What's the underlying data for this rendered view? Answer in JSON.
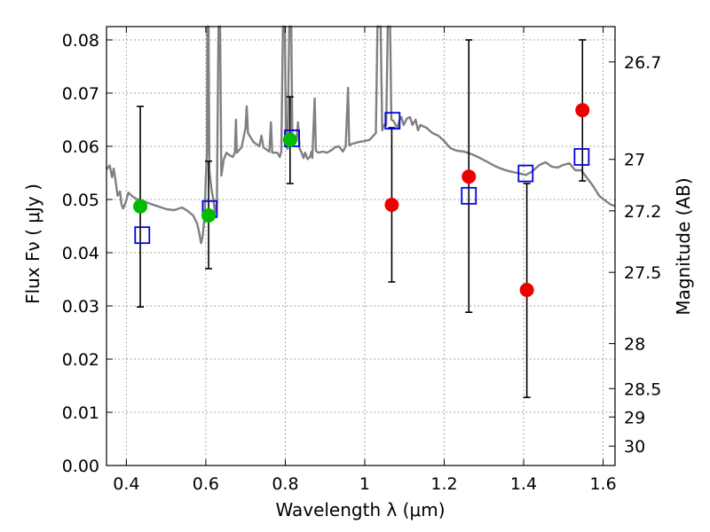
{
  "chart_data": {
    "type": "scatter",
    "xlabel": "Wavelength  λ (μm)",
    "ylabel": "Flux  Fν  ( μJy )",
    "ylabel_right": "Magnitude (AB)",
    "xlim": [
      0.35,
      1.63
    ],
    "ylim": [
      0.0,
      0.0825
    ],
    "grid": true,
    "x_ticks": [
      0.4,
      0.6,
      0.8,
      1.0,
      1.2,
      1.4,
      1.6
    ],
    "x_tick_labels": [
      "0.4",
      "0.6",
      "0.8",
      "1",
      "1.2",
      "1.4",
      "1.6"
    ],
    "y_ticks": [
      0.0,
      0.01,
      0.02,
      0.03,
      0.04,
      0.05,
      0.06,
      0.07,
      0.08
    ],
    "y_tick_labels": [
      "0.00",
      "0.01",
      "0.02",
      "0.03",
      "0.04",
      "0.05",
      "0.06",
      "0.07",
      "0.08"
    ],
    "mag_ticks": [
      26.7,
      27,
      27.2,
      27.5,
      28,
      28.5,
      29,
      30
    ],
    "mag_tick_labels": [
      "26.7",
      "27",
      "27.2",
      "27.5",
      "28",
      "28.5",
      "29",
      "30"
    ],
    "colors": {
      "sed": "#808080",
      "green_points": "#00bb00",
      "red_points": "#ee0000",
      "model_squares": "#0000dd",
      "error_bars": "#000000",
      "grid": "#888888"
    },
    "error_bars": [
      {
        "x": 0.435,
        "y_low": 0.0298,
        "y_high": 0.0675
      },
      {
        "x": 0.607,
        "y_low": 0.037,
        "y_high": 0.0572
      },
      {
        "x": 0.812,
        "y_low": 0.053,
        "y_high": 0.0693
      },
      {
        "x": 1.068,
        "y_low": 0.0345,
        "y_high": 0.0635
      },
      {
        "x": 1.262,
        "y_low": 0.0288,
        "y_high": 0.08
      },
      {
        "x": 1.408,
        "y_low": 0.0128,
        "y_high": 0.053
      },
      {
        "x": 1.548,
        "y_low": 0.0535,
        "y_high": 0.08
      }
    ],
    "green_points": [
      {
        "x": 0.435,
        "y": 0.0487
      },
      {
        "x": 0.607,
        "y": 0.047
      },
      {
        "x": 0.812,
        "y": 0.0612
      }
    ],
    "red_points": [
      {
        "x": 1.068,
        "y": 0.049
      },
      {
        "x": 1.262,
        "y": 0.0543
      },
      {
        "x": 1.408,
        "y": 0.033
      },
      {
        "x": 1.548,
        "y": 0.0668
      }
    ],
    "model_squares": [
      {
        "x": 0.44,
        "y": 0.0433
      },
      {
        "x": 0.61,
        "y": 0.0482
      },
      {
        "x": 0.817,
        "y": 0.0615
      },
      {
        "x": 1.07,
        "y": 0.0648
      },
      {
        "x": 1.262,
        "y": 0.0507
      },
      {
        "x": 1.405,
        "y": 0.0549
      },
      {
        "x": 1.546,
        "y": 0.058
      }
    ],
    "sed_curve": [
      [
        0.35,
        0.0557
      ],
      [
        0.358,
        0.0564
      ],
      [
        0.364,
        0.0542
      ],
      [
        0.368,
        0.0558
      ],
      [
        0.372,
        0.054
      ],
      [
        0.378,
        0.0507
      ],
      [
        0.384,
        0.0515
      ],
      [
        0.388,
        0.049
      ],
      [
        0.392,
        0.0483
      ],
      [
        0.398,
        0.0494
      ],
      [
        0.405,
        0.0513
      ],
      [
        0.415,
        0.0506
      ],
      [
        0.425,
        0.0501
      ],
      [
        0.44,
        0.0498
      ],
      [
        0.46,
        0.0492
      ],
      [
        0.48,
        0.0487
      ],
      [
        0.5,
        0.0482
      ],
      [
        0.52,
        0.048
      ],
      [
        0.54,
        0.0485
      ],
      [
        0.555,
        0.0478
      ],
      [
        0.568,
        0.047
      ],
      [
        0.578,
        0.0455
      ],
      [
        0.584,
        0.0435
      ],
      [
        0.588,
        0.0418
      ],
      [
        0.592,
        0.043
      ],
      [
        0.597,
        0.047
      ],
      [
        0.6,
        0.054
      ],
      [
        0.603,
        0.059
      ],
      [
        0.604,
        0.0825
      ],
      [
        0.607,
        0.0825
      ],
      [
        0.609,
        0.0555
      ],
      [
        0.614,
        0.052
      ],
      [
        0.619,
        0.05
      ],
      [
        0.623,
        0.0475
      ],
      [
        0.628,
        0.0495
      ],
      [
        0.632,
        0.0825
      ],
      [
        0.636,
        0.0825
      ],
      [
        0.639,
        0.0545
      ],
      [
        0.645,
        0.0575
      ],
      [
        0.652,
        0.0588
      ],
      [
        0.66,
        0.0583
      ],
      [
        0.668,
        0.058
      ],
      [
        0.673,
        0.0588
      ],
      [
        0.676,
        0.065
      ],
      [
        0.678,
        0.0588
      ],
      [
        0.69,
        0.0598
      ],
      [
        0.7,
        0.0635
      ],
      [
        0.703,
        0.0675
      ],
      [
        0.706,
        0.0625
      ],
      [
        0.72,
        0.0608
      ],
      [
        0.735,
        0.06
      ],
      [
        0.74,
        0.062
      ],
      [
        0.745,
        0.0598
      ],
      [
        0.76,
        0.059
      ],
      [
        0.764,
        0.0645
      ],
      [
        0.767,
        0.0588
      ],
      [
        0.78,
        0.0588
      ],
      [
        0.786,
        0.058
      ],
      [
        0.79,
        0.059
      ],
      [
        0.794,
        0.0825
      ],
      [
        0.799,
        0.0825
      ],
      [
        0.802,
        0.06
      ],
      [
        0.806,
        0.0595
      ],
      [
        0.81,
        0.0825
      ],
      [
        0.815,
        0.0825
      ],
      [
        0.818,
        0.0605
      ],
      [
        0.824,
        0.0618
      ],
      [
        0.828,
        0.061
      ],
      [
        0.832,
        0.0645
      ],
      [
        0.836,
        0.0595
      ],
      [
        0.84,
        0.059
      ],
      [
        0.846,
        0.0578
      ],
      [
        0.85,
        0.0588
      ],
      [
        0.856,
        0.0576
      ],
      [
        0.862,
        0.058
      ],
      [
        0.866,
        0.059
      ],
      [
        0.868,
        0.0578
      ],
      [
        0.874,
        0.069
      ],
      [
        0.877,
        0.0592
      ],
      [
        0.882,
        0.0588
      ],
      [
        0.895,
        0.059
      ],
      [
        0.905,
        0.0588
      ],
      [
        0.915,
        0.0592
      ],
      [
        0.925,
        0.0598
      ],
      [
        0.935,
        0.06
      ],
      [
        0.945,
        0.059
      ],
      [
        0.952,
        0.06
      ],
      [
        0.958,
        0.071
      ],
      [
        0.961,
        0.0602
      ],
      [
        0.97,
        0.0605
      ],
      [
        0.985,
        0.0608
      ],
      [
        1.0,
        0.061
      ],
      [
        1.012,
        0.0612
      ],
      [
        1.022,
        0.062
      ],
      [
        1.028,
        0.0625
      ],
      [
        1.032,
        0.0825
      ],
      [
        1.04,
        0.0825
      ],
      [
        1.044,
        0.063
      ],
      [
        1.048,
        0.064
      ],
      [
        1.054,
        0.064
      ],
      [
        1.058,
        0.0825
      ],
      [
        1.064,
        0.0825
      ],
      [
        1.067,
        0.065
      ],
      [
        1.072,
        0.0648
      ],
      [
        1.078,
        0.064
      ],
      [
        1.083,
        0.0635
      ],
      [
        1.087,
        0.0648
      ],
      [
        1.092,
        0.0655
      ],
      [
        1.098,
        0.064
      ],
      [
        1.106,
        0.0652
      ],
      [
        1.114,
        0.0655
      ],
      [
        1.12,
        0.064
      ],
      [
        1.128,
        0.065
      ],
      [
        1.134,
        0.063
      ],
      [
        1.14,
        0.064
      ],
      [
        1.155,
        0.0635
      ],
      [
        1.17,
        0.0625
      ],
      [
        1.185,
        0.062
      ],
      [
        1.2,
        0.061
      ],
      [
        1.215,
        0.0597
      ],
      [
        1.23,
        0.0592
      ],
      [
        1.25,
        0.059
      ],
      [
        1.27,
        0.0585
      ],
      [
        1.29,
        0.0578
      ],
      [
        1.31,
        0.057
      ],
      [
        1.33,
        0.0562
      ],
      [
        1.35,
        0.0556
      ],
      [
        1.37,
        0.0552
      ],
      [
        1.385,
        0.055
      ],
      [
        1.395,
        0.0548
      ],
      [
        1.405,
        0.0546
      ],
      [
        1.42,
        0.0552
      ],
      [
        1.44,
        0.0565
      ],
      [
        1.455,
        0.057
      ],
      [
        1.47,
        0.0562
      ],
      [
        1.485,
        0.056
      ],
      [
        1.5,
        0.0565
      ],
      [
        1.515,
        0.0568
      ],
      [
        1.53,
        0.0555
      ],
      [
        1.545,
        0.0555
      ],
      [
        1.56,
        0.054
      ],
      [
        1.575,
        0.0525
      ],
      [
        1.59,
        0.0507
      ],
      [
        1.605,
        0.0498
      ],
      [
        1.62,
        0.049
      ],
      [
        1.63,
        0.0488
      ]
    ]
  }
}
